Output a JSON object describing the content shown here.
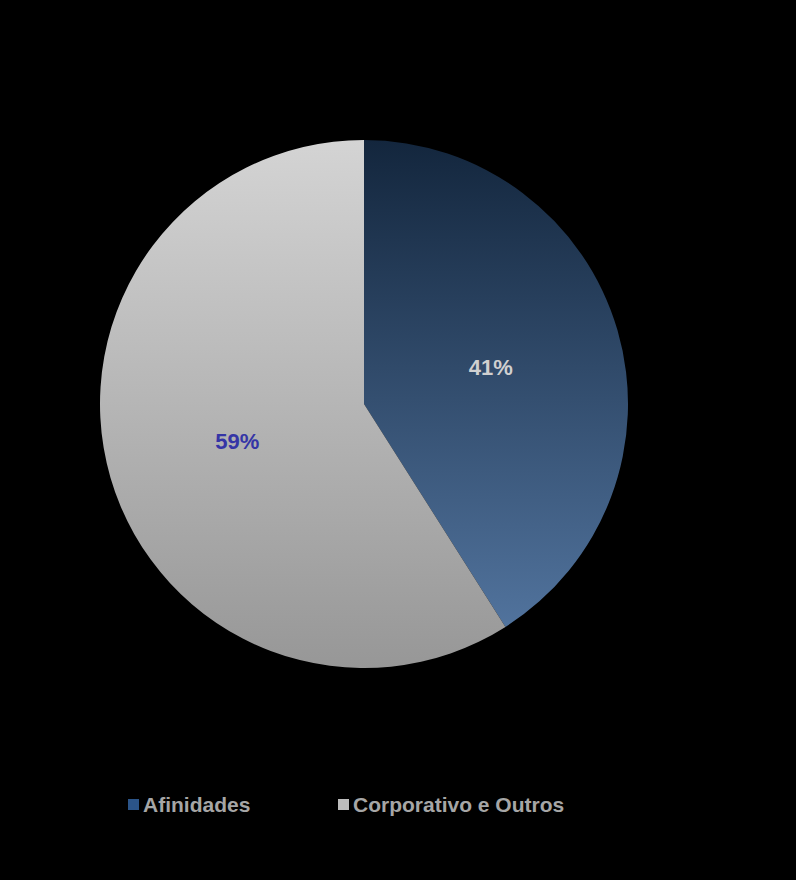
{
  "chart_data": {
    "type": "pie",
    "categories": [
      "Afinidades",
      "Corporativo e Outros"
    ],
    "values": [
      41,
      59
    ],
    "value_labels": [
      "41%",
      "59%"
    ],
    "colors": [
      "#2b5488",
      "#bdbdbd"
    ],
    "data_labels": true,
    "legend": "bottom"
  }
}
